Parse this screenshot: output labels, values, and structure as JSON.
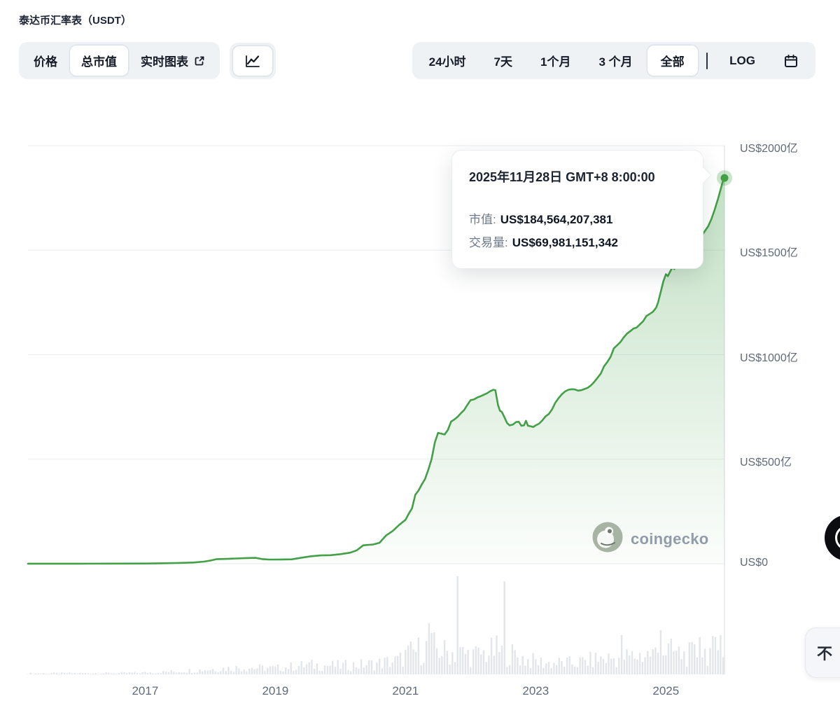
{
  "header": {
    "title": "泰达币汇率表（USDT）"
  },
  "toolbar": {
    "metric_tabs": [
      {
        "label": "价格",
        "active": false
      },
      {
        "label": "总市值",
        "active": true
      },
      {
        "label": "实时图表",
        "active": false,
        "external": true
      }
    ],
    "chart_type": {
      "icon": "line-chart-icon",
      "active": true
    },
    "range_tabs": [
      {
        "label": "24小时",
        "active": false
      },
      {
        "label": "7天",
        "active": false
      },
      {
        "label": "1个月",
        "active": false
      },
      {
        "label": "3 个月",
        "active": false
      },
      {
        "label": "全部",
        "active": true
      }
    ],
    "log_label": "LOG",
    "calendar_icon": "calendar-icon"
  },
  "tooltip": {
    "date": "2025年11月28日 GMT+8 8:00:00",
    "market_cap_label": "市值:",
    "market_cap_value": "US$184,564,207,381",
    "volume_label": "交易量:",
    "volume_value": "US$69,981,151,342"
  },
  "watermark": {
    "text": "coingecko"
  },
  "widgets": {
    "bottom_right_text": "不"
  },
  "chart_data": {
    "type": "area",
    "title": "泰达币汇率表（USDT） 总市值",
    "xlabel": "",
    "ylabel": "市值 (US$亿)",
    "x_domain": [
      2015.2,
      2025.9
    ],
    "ylim": [
      0,
      200
    ],
    "y_unit": "billions USD (亿 = 100M, axis shown in US$亿)",
    "grid": "horizontal",
    "legend": "none",
    "y_ticks": [
      {
        "v": 200,
        "label": "US$2000亿"
      },
      {
        "v": 150,
        "label": "US$1500亿"
      },
      {
        "v": 100,
        "label": "US$1000亿"
      },
      {
        "v": 50,
        "label": "US$500亿"
      },
      {
        "v": 0,
        "label": "US$0"
      }
    ],
    "x_ticks": [
      {
        "v": 2017,
        "label": "2017"
      },
      {
        "v": 2019,
        "label": "2019"
      },
      {
        "v": 2021,
        "label": "2021"
      },
      {
        "v": 2023,
        "label": "2023"
      },
      {
        "v": 2025,
        "label": "2025"
      }
    ],
    "last_point": {
      "x": 2025.9,
      "market_cap_usd": 184564207381,
      "volume_usd": 69981151342
    },
    "series": [
      {
        "name": "市值",
        "color": "#43a047",
        "points": [
          [
            2015.2,
            0.05
          ],
          [
            2016.0,
            0.05
          ],
          [
            2016.5,
            0.07
          ],
          [
            2017.0,
            0.1
          ],
          [
            2017.3,
            0.25
          ],
          [
            2017.6,
            0.45
          ],
          [
            2017.75,
            0.6
          ],
          [
            2017.9,
            1.0
          ],
          [
            2018.0,
            1.5
          ],
          [
            2018.1,
            2.2
          ],
          [
            2018.25,
            2.3
          ],
          [
            2018.4,
            2.5
          ],
          [
            2018.55,
            2.7
          ],
          [
            2018.7,
            2.8
          ],
          [
            2018.8,
            2.2
          ],
          [
            2018.9,
            2.0
          ],
          [
            2019.1,
            2.05
          ],
          [
            2019.25,
            2.1
          ],
          [
            2019.35,
            2.6
          ],
          [
            2019.45,
            3.1
          ],
          [
            2019.55,
            3.6
          ],
          [
            2019.7,
            4.0
          ],
          [
            2019.85,
            4.1
          ],
          [
            2020.0,
            4.6
          ],
          [
            2020.15,
            5.3
          ],
          [
            2020.25,
            6.4
          ],
          [
            2020.35,
            8.8
          ],
          [
            2020.5,
            9.2
          ],
          [
            2020.6,
            10.0
          ],
          [
            2020.7,
            13.5
          ],
          [
            2020.8,
            15.6
          ],
          [
            2020.9,
            18.5
          ],
          [
            2021.0,
            21.0
          ],
          [
            2021.05,
            24.0
          ],
          [
            2021.1,
            26.5
          ],
          [
            2021.15,
            33.0
          ],
          [
            2021.2,
            35.0
          ],
          [
            2021.25,
            38.0
          ],
          [
            2021.3,
            40.5
          ],
          [
            2021.35,
            45.0
          ],
          [
            2021.4,
            50.0
          ],
          [
            2021.45,
            58.0
          ],
          [
            2021.5,
            62.6
          ],
          [
            2021.55,
            62.2
          ],
          [
            2021.6,
            61.8
          ],
          [
            2021.65,
            64.0
          ],
          [
            2021.7,
            68.0
          ],
          [
            2021.75,
            69.0
          ],
          [
            2021.8,
            70.3
          ],
          [
            2021.85,
            72.0
          ],
          [
            2021.9,
            73.5
          ],
          [
            2021.95,
            76.0
          ],
          [
            2022.0,
            78.3
          ],
          [
            2022.05,
            78.6
          ],
          [
            2022.1,
            79.5
          ],
          [
            2022.15,
            80.1
          ],
          [
            2022.2,
            80.8
          ],
          [
            2022.25,
            81.5
          ],
          [
            2022.3,
            82.5
          ],
          [
            2022.35,
            83.2
          ],
          [
            2022.38,
            83.0
          ],
          [
            2022.42,
            76.0
          ],
          [
            2022.45,
            73.2
          ],
          [
            2022.48,
            72.6
          ],
          [
            2022.52,
            70.0
          ],
          [
            2022.56,
            67.3
          ],
          [
            2022.6,
            66.2
          ],
          [
            2022.65,
            66.6
          ],
          [
            2022.7,
            67.8
          ],
          [
            2022.74,
            67.9
          ],
          [
            2022.78,
            66.0
          ],
          [
            2022.82,
            66.2
          ],
          [
            2022.85,
            68.4
          ],
          [
            2022.88,
            66.0
          ],
          [
            2022.92,
            65.8
          ],
          [
            2022.96,
            65.4
          ],
          [
            2023.0,
            66.2
          ],
          [
            2023.05,
            67.0
          ],
          [
            2023.1,
            68.5
          ],
          [
            2023.15,
            70.5
          ],
          [
            2023.2,
            71.6
          ],
          [
            2023.25,
            73.8
          ],
          [
            2023.3,
            77.0
          ],
          [
            2023.35,
            79.2
          ],
          [
            2023.4,
            81.0
          ],
          [
            2023.45,
            82.4
          ],
          [
            2023.5,
            83.2
          ],
          [
            2023.55,
            83.5
          ],
          [
            2023.6,
            83.4
          ],
          [
            2023.65,
            82.8
          ],
          [
            2023.7,
            83.0
          ],
          [
            2023.75,
            83.6
          ],
          [
            2023.8,
            84.2
          ],
          [
            2023.85,
            85.4
          ],
          [
            2023.9,
            87.0
          ],
          [
            2023.95,
            89.0
          ],
          [
            2024.0,
            91.0
          ],
          [
            2024.05,
            94.5
          ],
          [
            2024.1,
            96.5
          ],
          [
            2024.15,
            99.0
          ],
          [
            2024.2,
            103.0
          ],
          [
            2024.25,
            104.5
          ],
          [
            2024.3,
            106.0
          ],
          [
            2024.35,
            108.2
          ],
          [
            2024.4,
            110.0
          ],
          [
            2024.45,
            111.2
          ],
          [
            2024.5,
            112.5
          ],
          [
            2024.55,
            113.0
          ],
          [
            2024.6,
            114.5
          ],
          [
            2024.65,
            116.0
          ],
          [
            2024.7,
            118.5
          ],
          [
            2024.75,
            119.5
          ],
          [
            2024.8,
            120.5
          ],
          [
            2024.85,
            122.5
          ],
          [
            2024.88,
            125.0
          ],
          [
            2024.92,
            130.0
          ],
          [
            2024.96,
            135.0
          ],
          [
            2025.0,
            138.5
          ],
          [
            2025.03,
            137.6
          ],
          [
            2025.06,
            139.5
          ],
          [
            2025.1,
            141.8
          ],
          [
            2025.13,
            141.0
          ],
          [
            2025.17,
            143.0
          ],
          [
            2025.2,
            143.6
          ],
          [
            2025.25,
            144.5
          ],
          [
            2025.3,
            146.0
          ],
          [
            2025.35,
            148.6
          ],
          [
            2025.4,
            151.0
          ],
          [
            2025.45,
            153.4
          ],
          [
            2025.5,
            155.2
          ],
          [
            2025.55,
            157.0
          ],
          [
            2025.6,
            159.2
          ],
          [
            2025.65,
            161.5
          ],
          [
            2025.7,
            165.0
          ],
          [
            2025.75,
            169.5
          ],
          [
            2025.8,
            174.5
          ],
          [
            2025.84,
            179.0
          ],
          [
            2025.87,
            182.5
          ],
          [
            2025.9,
            184.56
          ]
        ]
      }
    ],
    "volume": {
      "color": "#e2e6ea",
      "envelope": [
        [
          2015.2,
          0.012
        ],
        [
          2016.5,
          0.015
        ],
        [
          2017.0,
          0.02
        ],
        [
          2017.5,
          0.035
        ],
        [
          2018.0,
          0.06
        ],
        [
          2018.5,
          0.08
        ],
        [
          2019.0,
          0.07
        ],
        [
          2019.5,
          0.11
        ],
        [
          2020.0,
          0.1
        ],
        [
          2020.5,
          0.12
        ],
        [
          2020.9,
          0.16
        ],
        [
          2021.0,
          0.22
        ],
        [
          2021.2,
          0.28
        ],
        [
          2021.4,
          0.32
        ],
        [
          2021.6,
          0.26
        ],
        [
          2021.9,
          0.24
        ],
        [
          2022.1,
          0.22
        ],
        [
          2022.4,
          0.28
        ],
        [
          2022.6,
          0.24
        ],
        [
          2022.9,
          0.16
        ],
        [
          2023.2,
          0.13
        ],
        [
          2023.6,
          0.13
        ],
        [
          2024.0,
          0.18
        ],
        [
          2024.4,
          0.2
        ],
        [
          2024.8,
          0.24
        ],
        [
          2025.0,
          0.28
        ],
        [
          2025.3,
          0.22
        ],
        [
          2025.6,
          0.26
        ],
        [
          2025.9,
          0.3
        ]
      ],
      "spikes": [
        [
          2021.35,
          0.52
        ],
        [
          2021.8,
          1.0
        ],
        [
          2022.53,
          0.95
        ],
        [
          2024.3,
          0.4
        ],
        [
          2024.9,
          0.45
        ],
        [
          2025.5,
          0.38
        ],
        [
          2025.82,
          0.4
        ]
      ]
    }
  }
}
